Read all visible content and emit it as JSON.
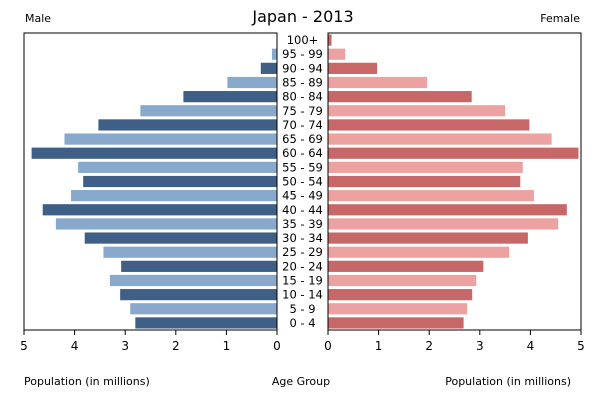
{
  "chart_data": {
    "type": "bar",
    "title": "Japan - 2013",
    "left_label": "Male",
    "right_label": "Female",
    "xlabel_left": "Population (in millions)",
    "xlabel_center": "Age Group",
    "xlabel_right": "Population (in millions)",
    "xlim": [
      0,
      5
    ],
    "ticks": [
      "5",
      "4",
      "3",
      "2",
      "1",
      "0",
      "0",
      "1",
      "2",
      "3",
      "4",
      "5"
    ],
    "categories": [
      "100+",
      "95 - 99",
      "90 - 94",
      "85 - 89",
      "80 - 84",
      "75 - 79",
      "70 - 74",
      "65 - 69",
      "60 - 64",
      "55 - 59",
      "50 - 54",
      "45 - 49",
      "40 - 44",
      "35 - 39",
      "30 - 34",
      "25 - 29",
      "20 - 24",
      "15 - 19",
      "10 - 14",
      "5 - 9",
      "0 - 4"
    ],
    "series": [
      {
        "name": "Male",
        "values": [
          0.0,
          0.1,
          0.32,
          0.98,
          1.85,
          2.7,
          3.53,
          4.2,
          4.85,
          3.93,
          3.83,
          4.07,
          4.63,
          4.37,
          3.8,
          3.43,
          3.08,
          3.3,
          3.1,
          2.9,
          2.8
        ]
      },
      {
        "name": "Female",
        "values": [
          0.07,
          0.34,
          0.97,
          1.96,
          2.84,
          3.5,
          3.98,
          4.42,
          4.95,
          3.85,
          3.8,
          4.07,
          4.72,
          4.55,
          3.95,
          3.58,
          3.07,
          2.93,
          2.85,
          2.75,
          2.68
        ]
      }
    ],
    "colors": {
      "male_dark": "#3f5f87",
      "male_light": "#88a8cc",
      "female_dark": "#c86767",
      "female_light": "#eda2a2",
      "frame": "#000000"
    },
    "grid": false
  }
}
